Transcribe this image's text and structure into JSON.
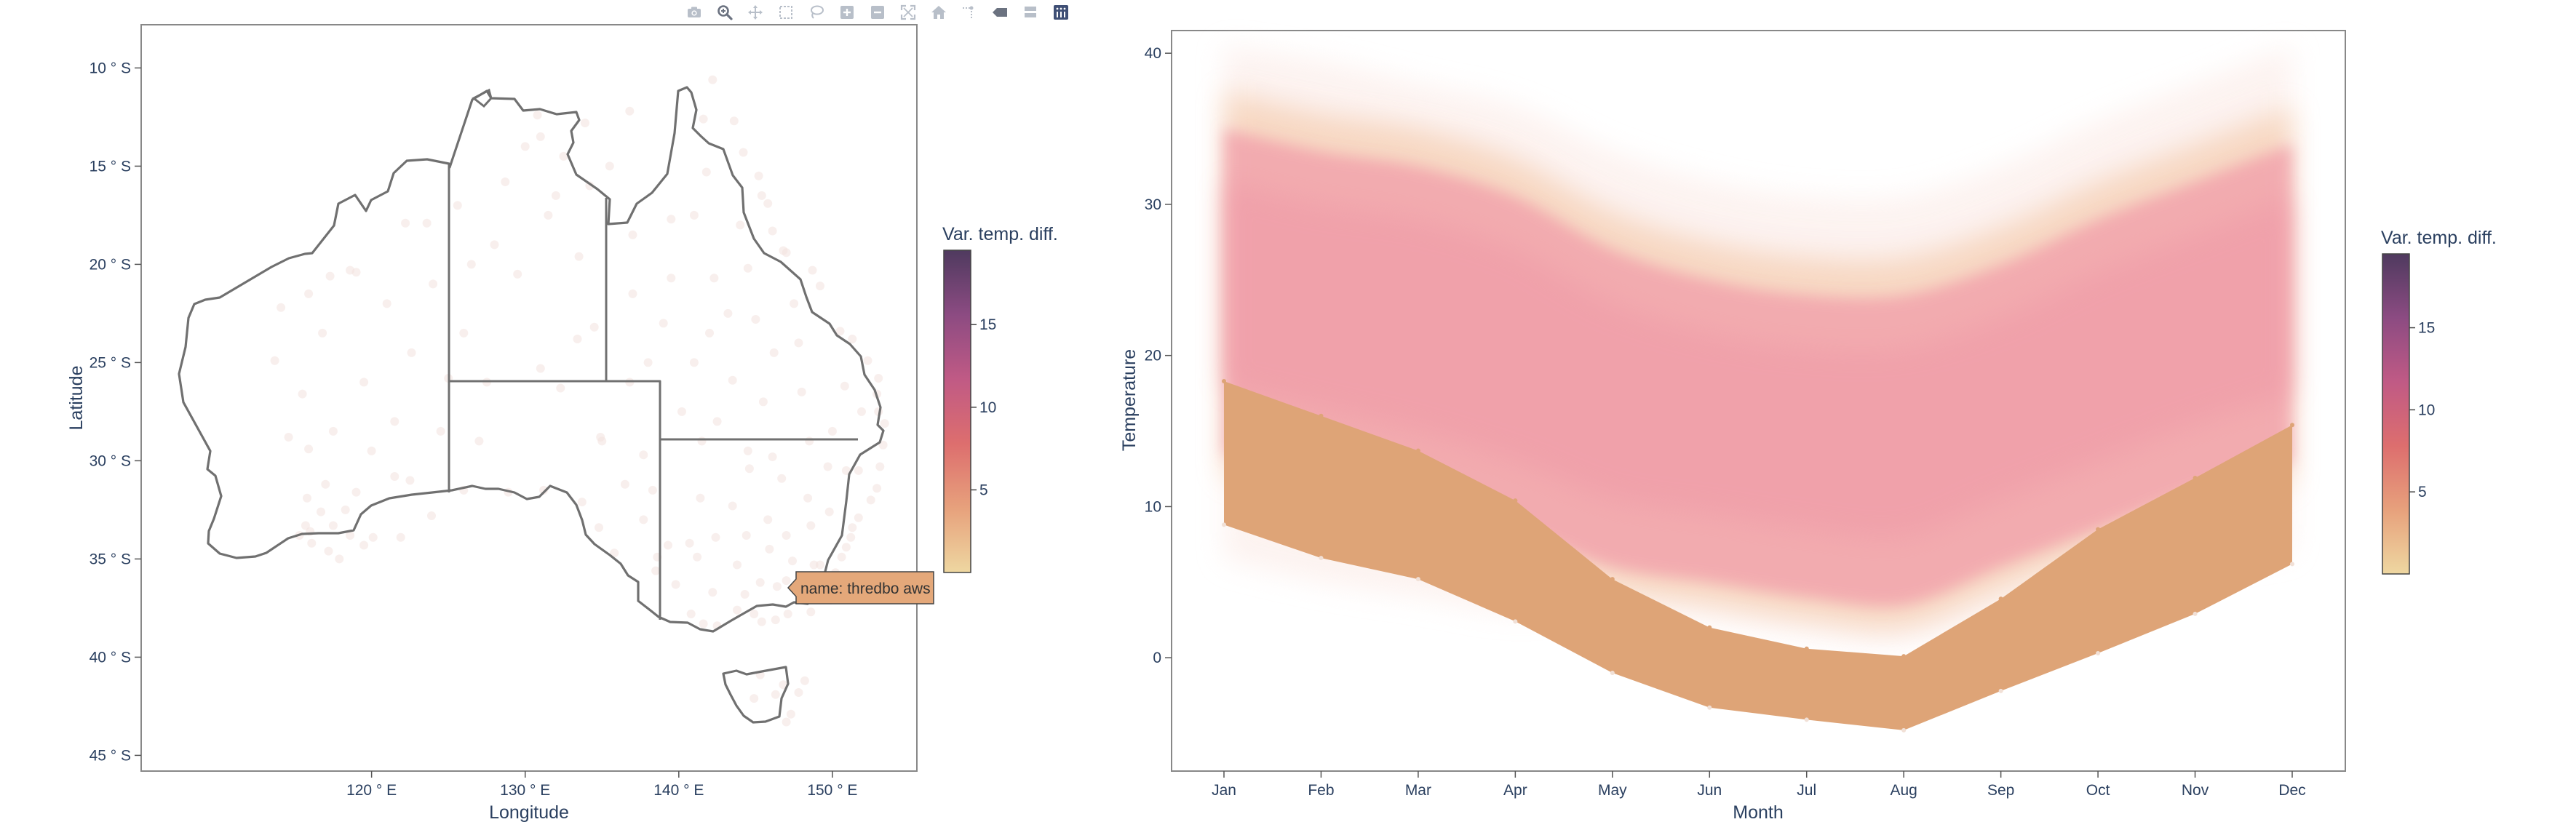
{
  "modebar": {
    "icons": [
      "camera-icon",
      "zoom-icon",
      "pan-icon",
      "box-select-icon",
      "lasso-icon",
      "zoom-in-icon",
      "zoom-out-icon",
      "autoscale-icon",
      "home-icon",
      "spike-lines-icon",
      "hover-closest-icon",
      "hover-compare-icon",
      "plotly-logo-icon"
    ]
  },
  "chart_data": [
    {
      "type": "scatter",
      "subtype": "geo-map",
      "xlabel": "Longitude",
      "ylabel": "Latitude",
      "xlim": [
        105,
        155.5
      ],
      "ylim": [
        -45.8,
        -7.8
      ],
      "x_ticks": [
        120,
        130,
        140,
        150
      ],
      "x_tick_labels": [
        "120 ° E",
        "130 ° E",
        "140 ° E",
        "150 ° E"
      ],
      "y_ticks": [
        -10,
        -15,
        -20,
        -25,
        -30,
        -35,
        -40,
        -45
      ],
      "y_tick_labels": [
        "10 ° S",
        "15 ° S",
        "20 ° S",
        "25 ° S",
        "30 ° S",
        "35 ° S",
        "40 ° S",
        "45 ° S"
      ],
      "colorbar": {
        "title": "Var. temp. diff.",
        "range": [
          0,
          19.5
        ],
        "ticks": [
          5,
          10,
          15
        ],
        "tick_labels": [
          "5",
          "10",
          "15"
        ],
        "colors": [
          "#eed7a1",
          "#e7a17c",
          "#dd6e6e",
          "#c05a85",
          "#8c4b82",
          "#4f3a5f"
        ]
      },
      "hover": {
        "text": "name: thredbo aws",
        "lon": 148.3,
        "lat": -36.5,
        "bg": "#e4a87a"
      },
      "points": [
        [
          130.8,
          -12.4
        ],
        [
          131.0,
          -13.5
        ],
        [
          132.5,
          -14.5
        ],
        [
          133.9,
          -12.8
        ],
        [
          136.8,
          -12.2
        ],
        [
          134.2,
          -16.0
        ],
        [
          131.5,
          -17.5
        ],
        [
          133.5,
          -19.6
        ],
        [
          128.7,
          -15.8
        ],
        [
          125.6,
          -17.0
        ],
        [
          123.6,
          -17.9
        ],
        [
          122.2,
          -17.9
        ],
        [
          119.0,
          -20.4
        ],
        [
          117.3,
          -20.6
        ],
        [
          115.9,
          -21.5
        ],
        [
          114.1,
          -22.2
        ],
        [
          113.7,
          -24.9
        ],
        [
          116.8,
          -23.5
        ],
        [
          118.6,
          -20.3
        ],
        [
          121.0,
          -22.0
        ],
        [
          124.0,
          -21.0
        ],
        [
          126.0,
          -23.5
        ],
        [
          127.5,
          -26.0
        ],
        [
          122.6,
          -24.5
        ],
        [
          115.5,
          -26.6
        ],
        [
          114.6,
          -28.8
        ],
        [
          115.9,
          -29.4
        ],
        [
          117.0,
          -31.2
        ],
        [
          115.8,
          -31.9
        ],
        [
          116.7,
          -32.6
        ],
        [
          115.7,
          -33.3
        ],
        [
          116.1,
          -34.2
        ],
        [
          117.9,
          -35.0
        ],
        [
          118.6,
          -33.8
        ],
        [
          120.1,
          -33.9
        ],
        [
          121.9,
          -33.9
        ],
        [
          121.5,
          -30.8
        ],
        [
          119.0,
          -31.6
        ],
        [
          118.3,
          -32.5
        ],
        [
          117.5,
          -33.3
        ],
        [
          116.0,
          -33.6
        ],
        [
          115.3,
          -33.8
        ],
        [
          117.2,
          -34.6
        ],
        [
          119.5,
          -34.3
        ],
        [
          123.9,
          -32.8
        ],
        [
          126.0,
          -31.5
        ],
        [
          128.9,
          -31.6
        ],
        [
          131.2,
          -31.5
        ],
        [
          133.7,
          -32.1
        ],
        [
          134.8,
          -33.4
        ],
        [
          135.8,
          -34.7
        ],
        [
          137.7,
          -33.0
        ],
        [
          138.6,
          -34.9
        ],
        [
          138.5,
          -35.6
        ],
        [
          139.3,
          -34.3
        ],
        [
          140.7,
          -34.2
        ],
        [
          139.8,
          -36.3
        ],
        [
          140.8,
          -37.8
        ],
        [
          141.6,
          -38.3
        ],
        [
          142.5,
          -38.4
        ],
        [
          143.8,
          -37.6
        ],
        [
          144.9,
          -37.8
        ],
        [
          145.4,
          -38.2
        ],
        [
          146.3,
          -38.1
        ],
        [
          147.1,
          -37.8
        ],
        [
          148.6,
          -37.7
        ],
        [
          149.9,
          -37.1
        ],
        [
          148.3,
          -36.5
        ],
        [
          147.0,
          -36.1
        ],
        [
          146.4,
          -36.4
        ],
        [
          145.3,
          -36.2
        ],
        [
          144.3,
          -36.8
        ],
        [
          142.2,
          -36.7
        ],
        [
          141.2,
          -34.9
        ],
        [
          143.8,
          -35.3
        ],
        [
          145.9,
          -34.5
        ],
        [
          147.4,
          -35.1
        ],
        [
          148.8,
          -35.3
        ],
        [
          149.2,
          -35.3
        ],
        [
          150.2,
          -35.7
        ],
        [
          150.6,
          -34.9
        ],
        [
          151.2,
          -33.9
        ],
        [
          150.9,
          -34.4
        ],
        [
          151.3,
          -33.4
        ],
        [
          151.7,
          -32.9
        ],
        [
          152.5,
          -32.0
        ],
        [
          152.9,
          -31.4
        ],
        [
          153.1,
          -30.3
        ],
        [
          153.3,
          -29.2
        ],
        [
          153.4,
          -28.1
        ],
        [
          153.0,
          -27.5
        ],
        [
          152.9,
          -26.6
        ],
        [
          153.0,
          -25.8
        ],
        [
          152.3,
          -24.9
        ],
        [
          151.3,
          -23.8
        ],
        [
          150.5,
          -23.4
        ],
        [
          149.2,
          -21.1
        ],
        [
          148.7,
          -20.3
        ],
        [
          147.0,
          -19.4
        ],
        [
          146.8,
          -19.3
        ],
        [
          146.1,
          -18.3
        ],
        [
          145.8,
          -16.9
        ],
        [
          145.4,
          -16.5
        ],
        [
          145.2,
          -15.5
        ],
        [
          144.2,
          -14.3
        ],
        [
          143.6,
          -12.7
        ],
        [
          142.2,
          -10.6
        ],
        [
          141.6,
          -12.6
        ],
        [
          141.8,
          -15.3
        ],
        [
          141.0,
          -17.5
        ],
        [
          139.5,
          -17.7
        ],
        [
          139.5,
          -20.7
        ],
        [
          142.3,
          -20.7
        ],
        [
          144.5,
          -20.2
        ],
        [
          143.2,
          -22.5
        ],
        [
          145.0,
          -22.8
        ],
        [
          147.5,
          -22.0
        ],
        [
          146.2,
          -24.5
        ],
        [
          148.0,
          -26.5
        ],
        [
          150.8,
          -26.2
        ],
        [
          151.9,
          -27.5
        ],
        [
          150.0,
          -28.5
        ],
        [
          148.5,
          -29.0
        ],
        [
          146.1,
          -29.8
        ],
        [
          144.5,
          -29.5
        ],
        [
          142.5,
          -28.0
        ],
        [
          141.5,
          -29.0
        ],
        [
          141.4,
          -31.9
        ],
        [
          143.5,
          -32.3
        ],
        [
          144.6,
          -30.4
        ],
        [
          146.7,
          -30.9
        ],
        [
          148.4,
          -31.9
        ],
        [
          149.7,
          -30.3
        ],
        [
          150.9,
          -30.5
        ],
        [
          151.7,
          -30.5
        ],
        [
          149.8,
          -32.6
        ],
        [
          148.6,
          -33.3
        ],
        [
          147.0,
          -33.8
        ],
        [
          145.8,
          -33.0
        ],
        [
          144.4,
          -33.8
        ],
        [
          142.4,
          -33.9
        ],
        [
          147.3,
          -42.9
        ],
        [
          146.8,
          -41.4
        ],
        [
          145.3,
          -40.9
        ],
        [
          144.9,
          -42.1
        ],
        [
          147.8,
          -41.8
        ],
        [
          148.2,
          -41.2
        ],
        [
          147.0,
          -43.3
        ],
        [
          146.3,
          -41.9
        ],
        [
          133.4,
          -23.8
        ],
        [
          136.8,
          -26.0
        ],
        [
          135.0,
          -29.0
        ],
        [
          137.7,
          -29.7
        ],
        [
          138.3,
          -31.5
        ],
        [
          136.5,
          -31.2
        ],
        [
          134.9,
          -28.8
        ],
        [
          132.3,
          -26.3
        ],
        [
          138.0,
          -25.0
        ],
        [
          137.0,
          -21.5
        ],
        [
          134.5,
          -23.2
        ],
        [
          131.0,
          -25.3
        ],
        [
          129.5,
          -20.5
        ],
        [
          128.0,
          -19.0
        ],
        [
          126.5,
          -20.0
        ],
        [
          125.0,
          -25.8
        ],
        [
          121.5,
          -28.0
        ],
        [
          119.5,
          -26.0
        ],
        [
          117.5,
          -28.5
        ],
        [
          120.0,
          -29.5
        ],
        [
          122.5,
          -31.0
        ],
        [
          124.5,
          -28.5
        ],
        [
          127.0,
          -29.0
        ],
        [
          141.0,
          -25.0
        ],
        [
          143.5,
          -25.9
        ],
        [
          140.2,
          -27.5
        ],
        [
          137.0,
          -18.5
        ],
        [
          135.5,
          -15.0
        ],
        [
          132.0,
          -16.5
        ],
        [
          130.0,
          -14.0
        ],
        [
          139.0,
          -23.0
        ],
        [
          145.5,
          -27.0
        ],
        [
          147.8,
          -24.0
        ],
        [
          142.0,
          -23.5
        ],
        [
          144.0,
          -18.0
        ]
      ]
    },
    {
      "type": "area",
      "xlabel": "Month",
      "ylabel": "Temperature",
      "categories": [
        "Jan",
        "Feb",
        "Mar",
        "Apr",
        "May",
        "Jun",
        "Jul",
        "Aug",
        "Sep",
        "Oct",
        "Nov",
        "Dec"
      ],
      "ylim": [
        -7.5,
        41.5
      ],
      "y_ticks": [
        0,
        10,
        20,
        30,
        40
      ],
      "colorbar": {
        "title": "Var. temp. diff.",
        "range": [
          0,
          19.5
        ],
        "ticks": [
          5,
          10,
          15
        ],
        "tick_labels": [
          "5",
          "10",
          "15"
        ],
        "colors": [
          "#eed7a1",
          "#e7a17c",
          "#dd6e6e",
          "#c05a85",
          "#8c4b82",
          "#4f3a5f"
        ]
      },
      "highlight_band": {
        "color": "#dea477",
        "lower": [
          8.8,
          6.6,
          5.2,
          2.4,
          -1.0,
          -3.3,
          -4.1,
          -4.8,
          -2.2,
          0.3,
          2.9,
          6.2
        ],
        "upper": [
          18.3,
          16.0,
          13.7,
          10.4,
          5.2,
          2.0,
          0.6,
          0.1,
          3.9,
          8.5,
          11.9,
          15.4
        ]
      },
      "background_envelope": {
        "outer_upper": [
          40.5,
          39.5,
          38.0,
          36.5,
          33.5,
          31.5,
          30.5,
          30.5,
          32.5,
          35.5,
          38.0,
          40.5
        ],
        "outer_lower": [
          6.5,
          5.0,
          4.0,
          3.0,
          3.5,
          2.5,
          1.5,
          1.0,
          3.0,
          5.0,
          6.0,
          7.0
        ],
        "warm_upper": [
          37.5,
          36.0,
          35.0,
          33.0,
          29.5,
          27.5,
          26.5,
          26.5,
          28.5,
          31.5,
          34.0,
          36.5
        ],
        "warm_lower": [
          12.0,
          10.5,
          9.0,
          7.0,
          4.5,
          3.5,
          2.5,
          2.0,
          4.5,
          7.0,
          9.5,
          11.5
        ]
      }
    }
  ]
}
